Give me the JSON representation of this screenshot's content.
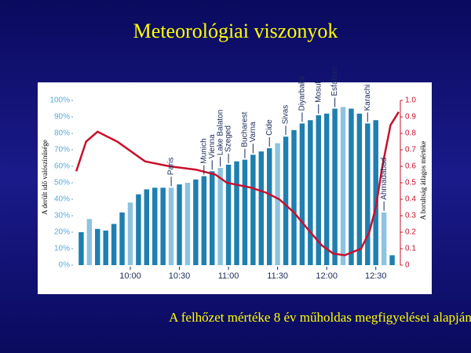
{
  "title": "Meteorológiai viszonyok",
  "footer": "A felhőzet mértéke 8 év műholdas megfigyelései alapján",
  "chart_data": {
    "type": "bar_line",
    "y_label": "A derült idő valószínűsége",
    "y2_label": "A borultság átlagos mértéke",
    "xlim": [
      565,
      765
    ],
    "xticks": [
      {
        "value": 600,
        "label": "10:00"
      },
      {
        "value": 630,
        "label": "10:30"
      },
      {
        "value": 660,
        "label": "11:00"
      },
      {
        "value": 690,
        "label": "11:30"
      },
      {
        "value": 720,
        "label": "12:00"
      },
      {
        "value": 750,
        "label": "12:30"
      }
    ],
    "ylim": [
      0,
      100
    ],
    "yticks": [
      {
        "value": 0,
        "label": "0%"
      },
      {
        "value": 10,
        "label": "10%"
      },
      {
        "value": 20,
        "label": "20%"
      },
      {
        "value": 30,
        "label": "30%"
      },
      {
        "value": 40,
        "label": "40%"
      },
      {
        "value": 50,
        "label": "50%"
      },
      {
        "value": 60,
        "label": "60%"
      },
      {
        "value": 70,
        "label": "70%"
      },
      {
        "value": 80,
        "label": "80%"
      },
      {
        "value": 90,
        "label": "90%"
      },
      {
        "value": 100,
        "label": "100%"
      }
    ],
    "y2lim": [
      0,
      1
    ],
    "y2ticks": [
      0,
      0.1,
      0.2,
      0.3,
      0.4,
      0.5,
      0.6,
      0.7,
      0.8,
      0.9,
      {
        "value": 1,
        "label": "1.0"
      }
    ],
    "series": [
      {
        "type": "bar",
        "x": [
          570,
          575,
          580,
          585,
          590,
          595,
          600,
          605,
          610,
          615,
          620,
          625,
          630,
          635,
          640,
          645,
          650,
          655,
          660,
          665,
          670,
          675,
          680,
          685,
          690,
          695,
          700,
          705,
          710,
          715,
          720,
          725,
          730,
          735,
          740,
          745,
          750,
          755,
          760
        ],
        "values": [
          20,
          28,
          22,
          21,
          25,
          32,
          38,
          43,
          46,
          47,
          47,
          47,
          49,
          50,
          52,
          54,
          57,
          59,
          61,
          63,
          64,
          67,
          69,
          71,
          74,
          78,
          82,
          86,
          88,
          91,
          92,
          95,
          96,
          95,
          92,
          86,
          88,
          32,
          6
        ],
        "colors": [
          "#1f7fb0",
          "#8ec3e0",
          "#1f7fb0",
          "#1f7fb0",
          "#1f7fb0",
          "#1f7fb0",
          "#8ec3e0",
          "#1f7fb0",
          "#1f7fb0",
          "#1f7fb0",
          "#1f7fb0",
          "#8ec3e0",
          "#1f7fb0",
          "#8ec3e0",
          "#1f7fb0",
          "#1f7fb0",
          "#1f7fb0",
          "#8ec3e0",
          "#1f7fb0",
          "#1f7fb0",
          "#1f7fb0",
          "#1f7fb0",
          "#1f7fb0",
          "#1f7fb0",
          "#8ec3e0",
          "#1f7fb0",
          "#1f7fb0",
          "#1f7fb0",
          "#1f7fb0",
          "#1f7fb0",
          "#1f7fb0",
          "#1f7fb0",
          "#8ec3e0",
          "#1f7fb0",
          "#1f7fb0",
          "#1f7fb0",
          "#1f7fb0",
          "#8ec3e0",
          "#1f7fb0"
        ]
      },
      {
        "type": "line",
        "axis": "y2",
        "color": "#c8102e",
        "x": [
          567,
          573,
          580,
          592,
          609,
          624,
          640,
          652,
          659,
          674,
          683,
          691,
          700,
          710,
          717,
          724,
          731,
          741,
          746,
          750,
          754,
          759,
          764
        ],
        "values": [
          0.57,
          0.75,
          0.81,
          0.75,
          0.63,
          0.6,
          0.58,
          0.55,
          0.5,
          0.47,
          0.44,
          0.4,
          0.32,
          0.2,
          0.12,
          0.07,
          0.06,
          0.1,
          0.2,
          0.35,
          0.6,
          0.85,
          0.93
        ]
      }
    ],
    "annotations": [
      {
        "text": "Paris",
        "x": 625
      },
      {
        "text": "Munich",
        "x": 645
      },
      {
        "text": "Vienna",
        "x": 650
      },
      {
        "text": "Lake Balaton",
        "x": 655
      },
      {
        "text": "Szeged",
        "x": 660
      },
      {
        "text": "Bucharest",
        "x": 670
      },
      {
        "text": "Varna",
        "x": 675
      },
      {
        "text": "Cide",
        "x": 685
      },
      {
        "text": "Sivas",
        "x": 695
      },
      {
        "text": "Diyarbakir",
        "x": 705
      },
      {
        "text": "Mosul",
        "x": 715
      },
      {
        "text": "Esfahan",
        "x": 725
      },
      {
        "text": "Karachi",
        "x": 745
      },
      {
        "text": "Ahmadabad",
        "x": 755
      }
    ]
  }
}
